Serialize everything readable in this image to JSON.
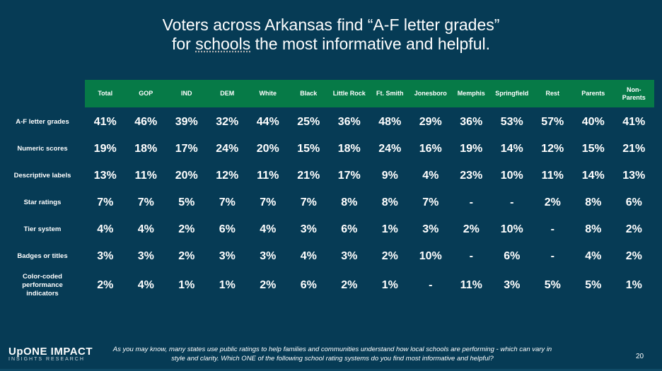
{
  "title": {
    "line1": "Voters across Arkansas find “A-F letter grades”",
    "line2_pre": "for ",
    "line2_ul": "schools",
    "line2_post": " the most informative and helpful."
  },
  "columns": [
    "Total",
    "GOP",
    "IND",
    "DEM",
    "White",
    "Black",
    "Little Rock",
    "Ft. Smith",
    "Jonesboro",
    "Memphis",
    "Springfield",
    "Rest",
    "Parents",
    "Non-Parents"
  ],
  "rows": [
    {
      "label": "A-F letter grades",
      "values": [
        "41%",
        "46%",
        "39%",
        "32%",
        "44%",
        "25%",
        "36%",
        "48%",
        "29%",
        "36%",
        "53%",
        "57%",
        "40%",
        "41%"
      ]
    },
    {
      "label": "Numeric scores",
      "values": [
        "19%",
        "18%",
        "17%",
        "24%",
        "20%",
        "15%",
        "18%",
        "24%",
        "16%",
        "19%",
        "14%",
        "12%",
        "15%",
        "21%"
      ]
    },
    {
      "label": "Descriptive labels",
      "values": [
        "13%",
        "11%",
        "20%",
        "12%",
        "11%",
        "21%",
        "17%",
        "9%",
        "4%",
        "23%",
        "10%",
        "11%",
        "14%",
        "13%"
      ]
    },
    {
      "label": "Star ratings",
      "values": [
        "7%",
        "7%",
        "5%",
        "7%",
        "7%",
        "7%",
        "8%",
        "8%",
        "7%",
        "-",
        "-",
        "2%",
        "8%",
        "6%"
      ]
    },
    {
      "label": "Tier system",
      "values": [
        "4%",
        "4%",
        "2%",
        "6%",
        "4%",
        "3%",
        "6%",
        "1%",
        "3%",
        "2%",
        "10%",
        "-",
        "8%",
        "2%"
      ]
    },
    {
      "label": "Badges or titles",
      "values": [
        "3%",
        "3%",
        "2%",
        "3%",
        "3%",
        "4%",
        "3%",
        "2%",
        "10%",
        "-",
        "6%",
        "-",
        "4%",
        "2%"
      ]
    },
    {
      "label": "Color-coded performance indicators",
      "values": [
        "2%",
        "4%",
        "1%",
        "1%",
        "2%",
        "6%",
        "2%",
        "1%",
        "-",
        "11%",
        "3%",
        "5%",
        "5%",
        "1%"
      ]
    }
  ],
  "footer": {
    "logo_line1": "UpONE IMPACT",
    "logo_line2": "INSIGHTS RESEARCH",
    "note": "As you may know, many states use public ratings to help families and communities understand how local schools are performing - which can vary in style and clarity. Which ONE of the following school rating systems do you find most informative and helpful?",
    "page": "20"
  },
  "colors": {
    "background": "#063b55",
    "header": "#067a47"
  }
}
